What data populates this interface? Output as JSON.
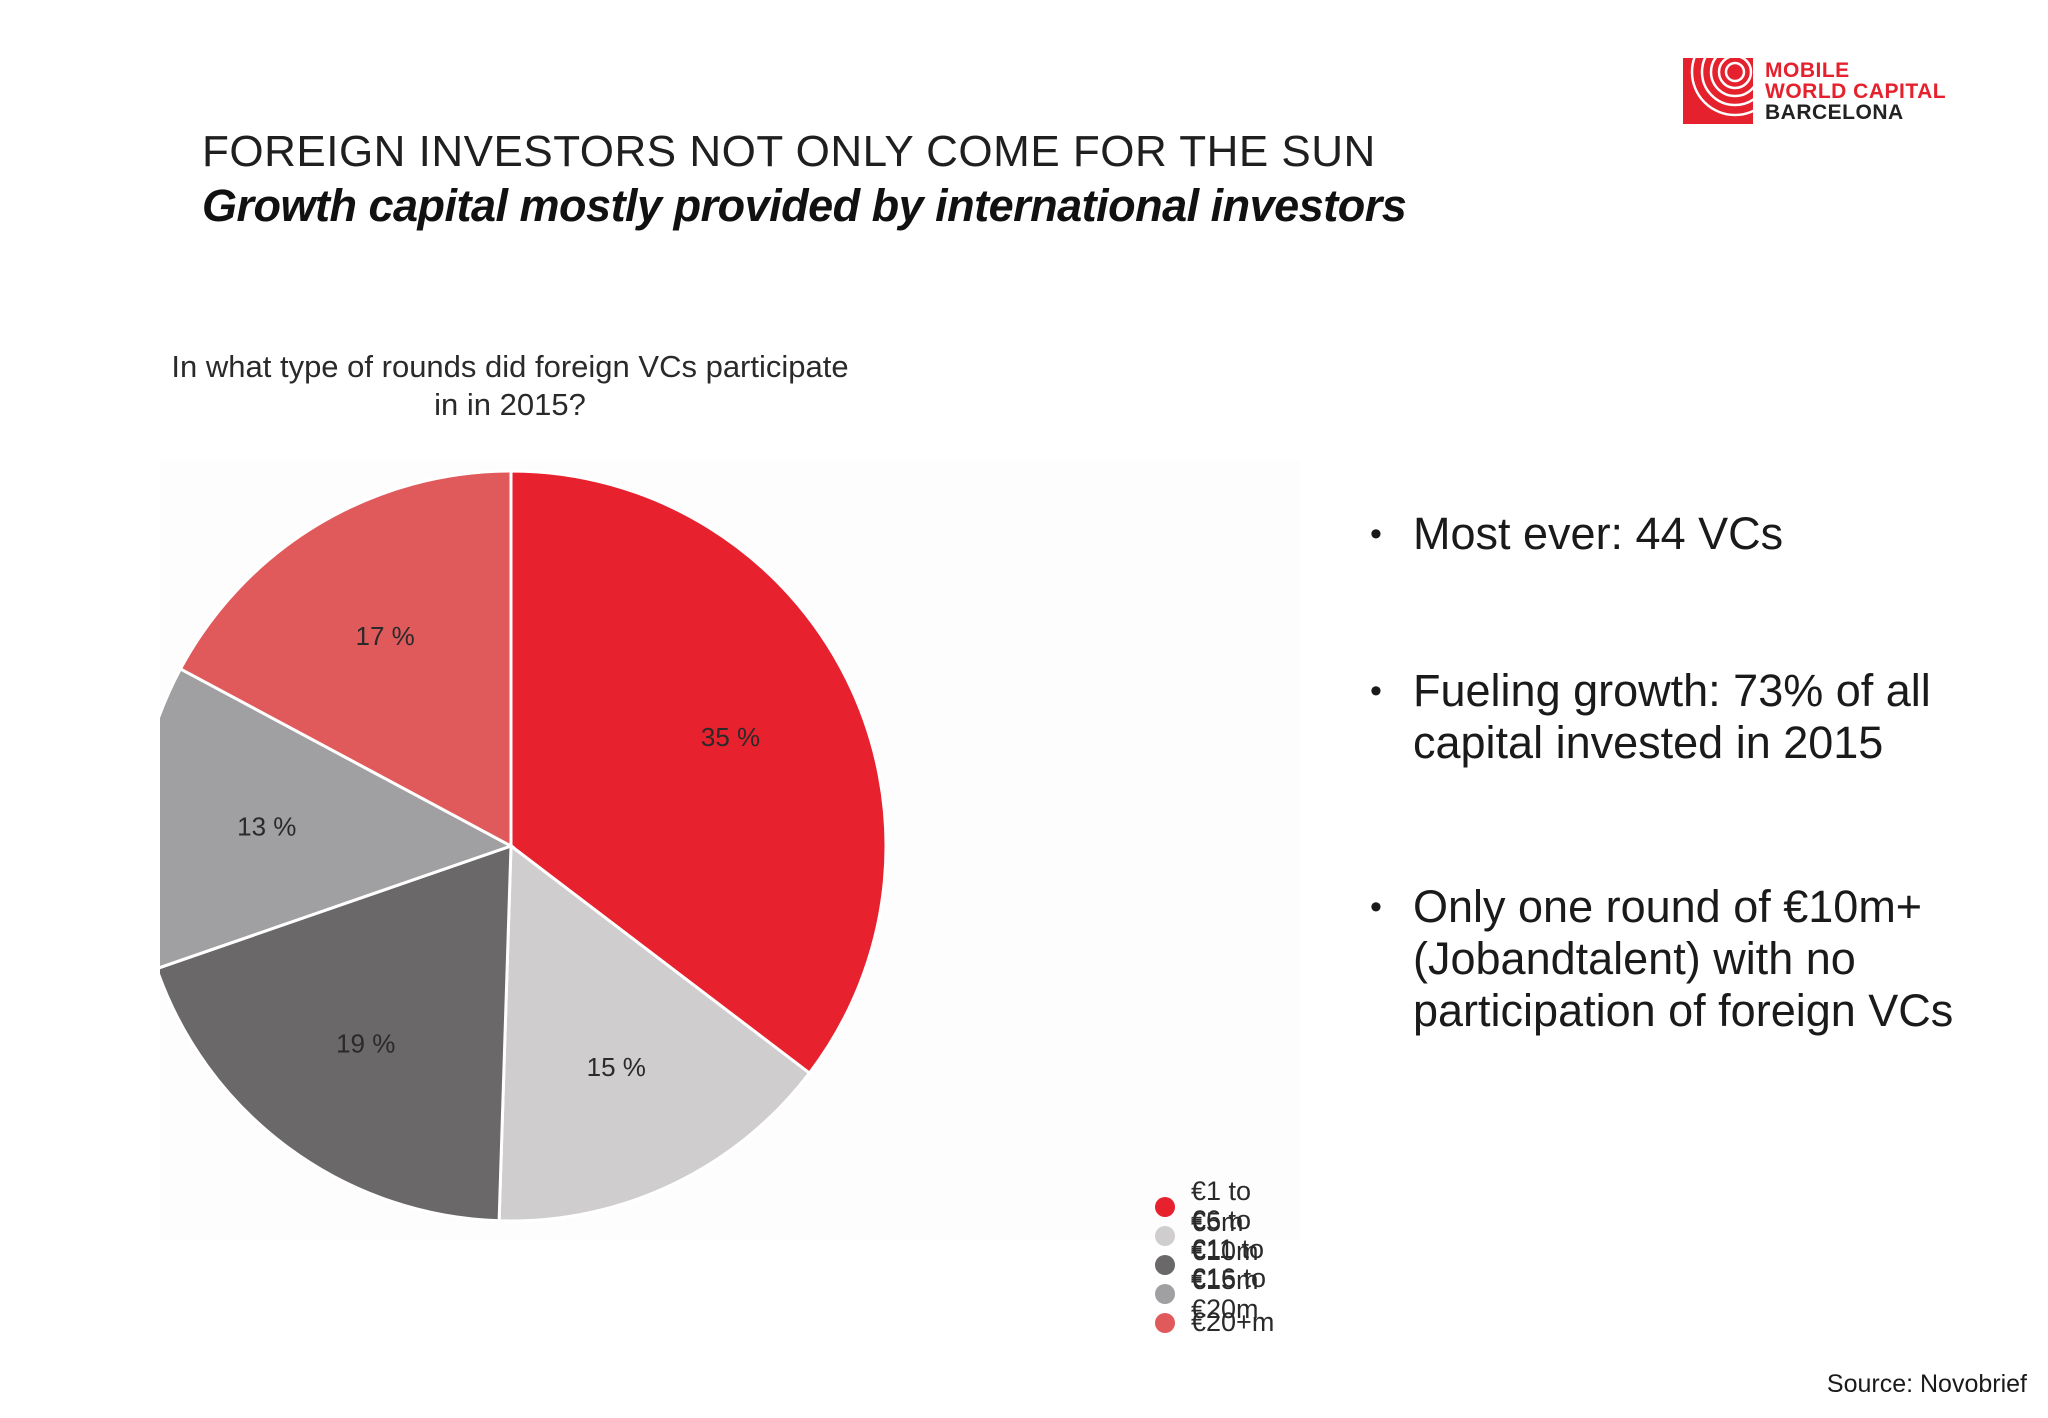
{
  "logo": {
    "line1": "MOBILE",
    "line2": "WORLD CAPITAL",
    "line3": "BARCELONA",
    "color": "#e4212c"
  },
  "heading": {
    "line1": "FOREIGN INVESTORS NOT ONLY COME FOR THE SUN",
    "line2": "Growth capital mostly provided by international investors"
  },
  "chart_data": {
    "type": "pie",
    "title": "In what type of rounds did foreign VCs participate in in 2015?",
    "legend_position": "right",
    "slices": [
      {
        "label": "€1 to €5m",
        "value": 35,
        "display": "35 %",
        "color": "#e8212e"
      },
      {
        "label": "€6 to €10m",
        "value": 15,
        "display": "15 %",
        "color": "#cfcdce"
      },
      {
        "label": "€11 to €15m",
        "value": 19,
        "display": "19 %",
        "color": "#6a6868"
      },
      {
        "label": "€16 to €20m",
        "value": 13,
        "display": "13 %",
        "color": "#a09fa1"
      },
      {
        "label": "€20+m",
        "value": 17,
        "display": "17 %",
        "color": "#e05a5c"
      }
    ]
  },
  "bullets": [
    "Most ever: 44 VCs",
    "Fueling growth: 73% of all capital invested in 2015",
    "Only one round of €10m+ (Jobandtalent) with no participation of foreign VCs"
  ],
  "source": "Source: Novobrief"
}
